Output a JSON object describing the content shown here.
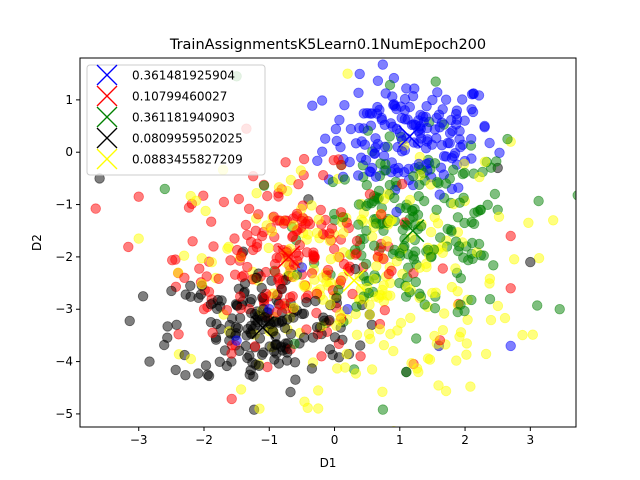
{
  "chart_data": {
    "type": "scatter",
    "title": "TrainAssignmentsK5Learn0.1NumEpoch200",
    "xlabel": "D1",
    "ylabel": "D2",
    "xlim": [
      -3.9,
      3.7
    ],
    "ylim": [
      -5.25,
      1.8
    ],
    "xticks": [
      -3,
      -2,
      -1,
      0,
      1,
      2,
      3
    ],
    "yticks": [
      -5,
      -4,
      -3,
      -2,
      -1,
      0,
      1
    ],
    "grid": false,
    "legend_position": "top-left",
    "point_alpha": 0.5,
    "centroid_marker": "x",
    "series": [
      {
        "name": "0.361481925904",
        "color": "#0000ff",
        "centroid": [
          1.15,
          0.3
        ],
        "spread": [
          0.65,
          0.55
        ],
        "count": 160,
        "points": [
          [
            1.5,
            1.0
          ],
          [
            0.9,
            0.9
          ],
          [
            2.3,
            0.5
          ],
          [
            1.8,
            -0.7
          ],
          [
            -1.0,
            -3.0
          ],
          [
            1.6,
            -3.7
          ],
          [
            -1.5,
            -3.6
          ],
          [
            2.7,
            -3.7
          ],
          [
            -0.5,
            -2.2
          ],
          [
            0.2,
            -3.0
          ]
        ]
      },
      {
        "name": "0.10799460027",
        "color": "#ff0000",
        "centroid": [
          -0.7,
          -2.0
        ],
        "spread": [
          0.85,
          0.8
        ],
        "count": 200,
        "points": [
          [
            -3.0,
            -0.85
          ],
          [
            -1.35,
            0.45
          ],
          [
            2.7,
            -2.6
          ],
          [
            -2.0,
            -3.0
          ],
          [
            -0.2,
            -3.9
          ],
          [
            0.4,
            -3.9
          ],
          [
            2.7,
            -1.6
          ],
          [
            1.9,
            -2.9
          ],
          [
            -2.3,
            -2.4
          ]
        ]
      },
      {
        "name": "0.361181940903",
        "color": "#008000",
        "centroid": [
          1.2,
          -1.5
        ],
        "spread": [
          0.8,
          0.85
        ],
        "count": 190,
        "points": [
          [
            3.45,
            -3.0
          ],
          [
            1.55,
            1.35
          ],
          [
            -1.5,
            1.45
          ],
          [
            -2.6,
            -0.7
          ],
          [
            0.3,
            -4.15
          ],
          [
            2.5,
            -1.1
          ],
          [
            1.1,
            -4.2
          ],
          [
            0.75,
            -1.5
          ],
          [
            2.65,
            0.25
          ]
        ]
      },
      {
        "name": "0.0809959502025",
        "color": "#000000",
        "centroid": [
          -1.1,
          -3.35
        ],
        "spread": [
          0.7,
          0.55
        ],
        "count": 170,
        "points": [
          [
            -3.6,
            -0.5
          ],
          [
            -1.3,
            -4.25
          ],
          [
            1.1,
            -4.2
          ],
          [
            3.0,
            -2.1
          ],
          [
            2.5,
            -0.3
          ],
          [
            -2.5,
            -2.65
          ],
          [
            -0.4,
            -0.9
          ],
          [
            -1.4,
            -1.9
          ]
        ]
      },
      {
        "name": "0.0883455827209",
        "color": "#ffff00",
        "centroid": [
          0.3,
          -2.45
        ],
        "spread": [
          1.2,
          1.1
        ],
        "count": 230,
        "points": [
          [
            -1.15,
            -4.9
          ],
          [
            -2.2,
            -3.95
          ],
          [
            -0.25,
            -4.55
          ],
          [
            3.35,
            -1.3
          ],
          [
            -3.0,
            -1.65
          ],
          [
            0.2,
            1.5
          ],
          [
            2.7,
            0.2
          ],
          [
            -1.7,
            -3.1
          ],
          [
            0.9,
            -3.8
          ]
        ]
      }
    ]
  }
}
